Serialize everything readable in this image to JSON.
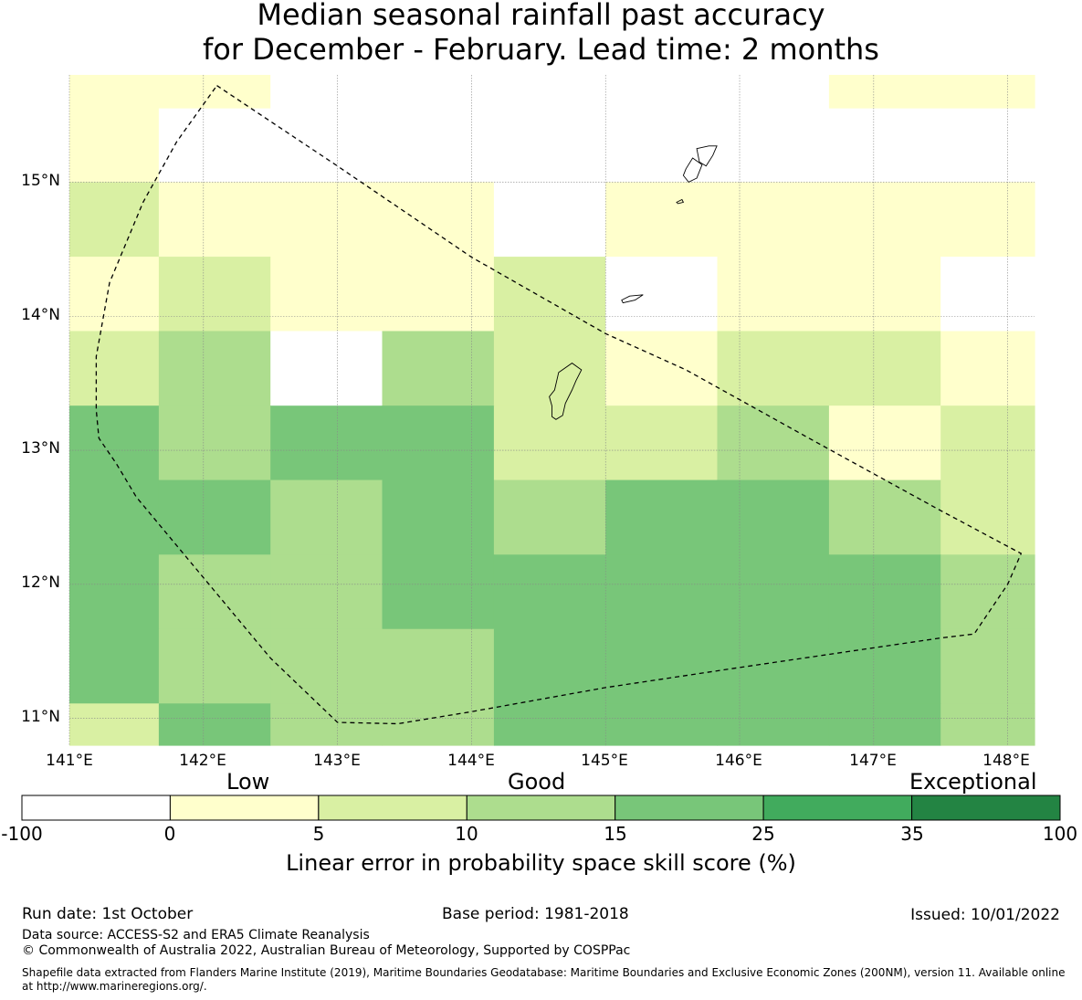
{
  "title": {
    "line1": "Median seasonal rainfall past accuracy",
    "line2": "for December - February. Lead time: 2 months"
  },
  "map": {
    "lat_labels": [
      "15°N",
      "14°N",
      "13°N",
      "12°N",
      "11°N"
    ],
    "lon_labels": [
      "141°E",
      "142°E",
      "143°E",
      "144°E",
      "145°E",
      "146°E",
      "147°E",
      "148°E"
    ],
    "extent": {
      "lon_min": 141.0,
      "lon_max": 148.2,
      "lat_min": 10.8,
      "lat_max": 15.8
    },
    "grid": {
      "lon_edges": [
        141.0,
        141.667,
        142.5,
        143.333,
        144.167,
        145.0,
        145.833,
        146.667,
        147.5,
        148.2
      ],
      "lat_edges": [
        15.8,
        15.55,
        15.0,
        14.444,
        13.889,
        13.333,
        12.778,
        12.222,
        11.667,
        11.111,
        10.8
      ],
      "categories": [
        [
          1,
          1,
          0,
          0,
          0,
          0,
          0,
          1,
          1
        ],
        [
          1,
          0,
          0,
          0,
          0,
          0,
          0,
          0,
          0
        ],
        [
          2,
          1,
          1,
          1,
          0,
          1,
          1,
          1,
          1
        ],
        [
          1,
          2,
          1,
          1,
          2,
          0,
          1,
          1,
          0
        ],
        [
          2,
          3,
          0,
          3,
          2,
          1,
          2,
          2,
          1
        ],
        [
          4,
          3,
          4,
          4,
          2,
          2,
          3,
          1,
          2
        ],
        [
          4,
          4,
          3,
          4,
          3,
          4,
          4,
          3,
          2
        ],
        [
          4,
          3,
          3,
          4,
          4,
          4,
          4,
          4,
          3
        ],
        [
          4,
          3,
          3,
          3,
          4,
          4,
          4,
          4,
          3
        ],
        [
          2,
          4,
          3,
          3,
          4,
          4,
          4,
          4,
          3
        ]
      ]
    },
    "boundary": [
      [
        142.1,
        15.72
      ],
      [
        143.0,
        15.12
      ],
      [
        144.0,
        14.44
      ],
      [
        145.0,
        13.87
      ],
      [
        145.6,
        13.6
      ],
      [
        146.5,
        13.1
      ],
      [
        147.5,
        12.55
      ],
      [
        148.1,
        12.23
      ],
      [
        148.0,
        12.0
      ],
      [
        147.75,
        11.63
      ],
      [
        147.5,
        11.6
      ],
      [
        146.0,
        11.38
      ],
      [
        145.0,
        11.23
      ],
      [
        144.0,
        11.05
      ],
      [
        143.45,
        10.96
      ],
      [
        143.0,
        10.97
      ],
      [
        142.5,
        11.45
      ],
      [
        142.0,
        12.05
      ],
      [
        141.5,
        12.65
      ],
      [
        141.35,
        12.9
      ],
      [
        141.22,
        13.09
      ],
      [
        141.2,
        13.3
      ],
      [
        141.2,
        13.7
      ],
      [
        141.3,
        14.25
      ],
      [
        141.55,
        14.85
      ],
      [
        141.8,
        15.3
      ],
      [
        142.1,
        15.72
      ]
    ],
    "islands": [
      [
        [
          144.65,
          13.58
        ],
        [
          144.75,
          13.65
        ],
        [
          144.82,
          13.6
        ],
        [
          144.78,
          13.52
        ],
        [
          144.75,
          13.45
        ],
        [
          144.7,
          13.35
        ],
        [
          144.68,
          13.26
        ],
        [
          144.63,
          13.23
        ],
        [
          144.6,
          13.25
        ],
        [
          144.6,
          13.33
        ],
        [
          144.58,
          13.4
        ],
        [
          144.62,
          13.45
        ],
        [
          144.65,
          13.58
        ]
      ],
      [
        [
          145.12,
          14.12
        ],
        [
          145.18,
          14.15
        ],
        [
          145.28,
          14.16
        ],
        [
          145.22,
          14.12
        ],
        [
          145.13,
          14.1
        ],
        [
          145.12,
          14.12
        ]
      ],
      [
        [
          145.6,
          15.1
        ],
        [
          145.65,
          15.18
        ],
        [
          145.72,
          15.13
        ],
        [
          145.68,
          15.03
        ],
        [
          145.62,
          15.0
        ],
        [
          145.58,
          15.05
        ],
        [
          145.6,
          15.1
        ]
      ],
      [
        [
          145.68,
          15.25
        ],
        [
          145.77,
          15.27
        ],
        [
          145.83,
          15.27
        ],
        [
          145.8,
          15.2
        ],
        [
          145.75,
          15.12
        ],
        [
          145.7,
          15.15
        ],
        [
          145.68,
          15.25
        ]
      ],
      [
        [
          145.53,
          14.85
        ],
        [
          145.57,
          14.87
        ],
        [
          145.58,
          14.85
        ],
        [
          145.54,
          14.84
        ],
        [
          145.53,
          14.85
        ]
      ]
    ]
  },
  "colorbar": {
    "category_labels": [
      "Low",
      "Good",
      "Exceptional"
    ],
    "bins": [
      {
        "color": "#ffffff"
      },
      {
        "color": "#ffffcc"
      },
      {
        "color": "#d9f0a3"
      },
      {
        "color": "#addd8e"
      },
      {
        "color": "#78c679"
      },
      {
        "color": "#41ab5d"
      },
      {
        "color": "#238443"
      }
    ],
    "ticks": [
      "-100",
      "0",
      "5",
      "10",
      "15",
      "25",
      "35",
      "100"
    ],
    "title": "Linear error in probability space skill score (%)"
  },
  "footer": {
    "run_date": "Run date: 1st October",
    "base_period": "Base period: 1981-2018",
    "issued": "Issued: 10/01/2022",
    "data_source": "Data source: ACCESS-S2 and ERA5 Climate Reanalysis",
    "copyright": "© Commonwealth of Australia 2022, Australian Bureau of Meteorology, Supported by COSPPac",
    "shapefile_line1": "Shapefile data extracted from Flanders Marine Institute (2019), Maritime Boundaries Geodatabase: Maritime Boundaries and Exclusive Economic Zones (200NM), version 11. Available online",
    "shapefile_line2": "at http://www.marineregions.org/."
  }
}
